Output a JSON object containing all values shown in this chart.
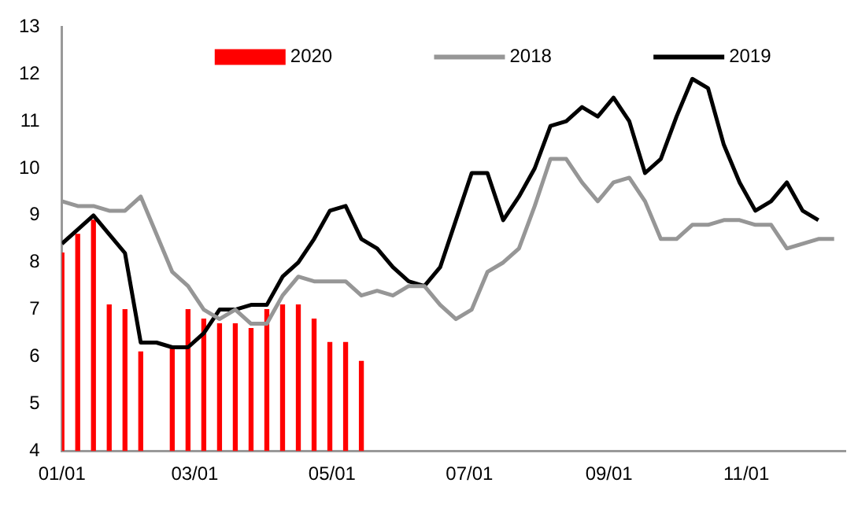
{
  "chart_data": {
    "type": "line",
    "x": [
      "--01-01",
      "--01-08",
      "--01-15",
      "--01-22",
      "--01-29",
      "--02-05",
      "--02-12",
      "--02-19",
      "--02-26",
      "--03-05",
      "--03-12",
      "--03-19",
      "--03-26",
      "--04-02",
      "--04-09",
      "--04-16",
      "--04-23",
      "--04-30",
      "--05-07",
      "--05-14",
      "--05-21",
      "--05-28",
      "--06-04",
      "--06-11",
      "--06-18",
      "--06-25",
      "--07-02",
      "--07-09",
      "--07-16",
      "--07-23",
      "--07-30",
      "--08-06",
      "--08-13",
      "--08-20",
      "--08-27",
      "--09-03",
      "--09-10",
      "--09-17",
      "--09-24",
      "--10-01",
      "--10-08",
      "--10-15",
      "--10-22",
      "--10-29",
      "--11-05",
      "--11-12",
      "--11-19",
      "--11-26",
      "--12-03",
      "--12-10"
    ],
    "series": [
      {
        "name": "2020",
        "type": "bar",
        "color": "#ff0000",
        "values": [
          8.2,
          8.6,
          8.9,
          7.1,
          7.0,
          6.1,
          null,
          6.2,
          7.0,
          6.8,
          6.7,
          6.7,
          6.6,
          7.0,
          7.1,
          7.1,
          6.8,
          6.3,
          6.3,
          5.9,
          null,
          null,
          null,
          null,
          null,
          null,
          null,
          null,
          null,
          null,
          null,
          null,
          null,
          null,
          null,
          null,
          null,
          null,
          null,
          null,
          null,
          null,
          null,
          null,
          null,
          null,
          null,
          null,
          null,
          null
        ]
      },
      {
        "name": "2018",
        "color": "#969696",
        "values": [
          9.3,
          9.2,
          9.2,
          9.1,
          9.1,
          9.4,
          8.6,
          7.8,
          7.5,
          7.0,
          6.8,
          7.0,
          6.7,
          6.7,
          7.3,
          7.7,
          7.6,
          7.6,
          7.6,
          7.3,
          7.4,
          7.3,
          7.5,
          7.5,
          7.1,
          6.8,
          7.0,
          7.8,
          8.0,
          8.3,
          9.2,
          10.2,
          10.2,
          9.7,
          9.3,
          9.7,
          9.8,
          9.3,
          8.5,
          8.5,
          8.8,
          8.8,
          8.9,
          8.9,
          8.8,
          8.8,
          8.3,
          8.4,
          8.5,
          8.5
        ]
      },
      {
        "name": "2019",
        "color": "#000000",
        "values": [
          8.4,
          8.7,
          9.0,
          8.6,
          8.2,
          6.3,
          6.3,
          6.2,
          6.2,
          6.5,
          7.0,
          7.0,
          7.1,
          7.1,
          7.7,
          8.0,
          8.5,
          9.1,
          9.2,
          8.5,
          8.3,
          7.9,
          7.6,
          7.5,
          7.9,
          8.9,
          9.9,
          9.9,
          8.9,
          9.4,
          10.0,
          10.9,
          11.0,
          11.3,
          11.1,
          11.5,
          11.0,
          9.9,
          10.2,
          11.1,
          11.9,
          11.7,
          10.5,
          9.7,
          9.1,
          9.3,
          9.7,
          9.1,
          8.9,
          null
        ]
      }
    ],
    "xlim": [
      "--01-01",
      "--12-15"
    ],
    "xticks": [
      {
        "value": "--01-01",
        "label": "01/01"
      },
      {
        "value": "--03-01",
        "label": "03/01"
      },
      {
        "value": "--05-01",
        "label": "05/01"
      },
      {
        "value": "--07-01",
        "label": "07/01"
      },
      {
        "value": "--09-01",
        "label": "09/01"
      },
      {
        "value": "--11-01",
        "label": "11/01"
      }
    ],
    "ylim": [
      4,
      13
    ],
    "yticks": [
      4,
      5,
      6,
      7,
      8,
      9,
      10,
      11,
      12,
      13
    ],
    "grid": false,
    "legend": "top",
    "marker": "none",
    "line_style": "solid"
  }
}
